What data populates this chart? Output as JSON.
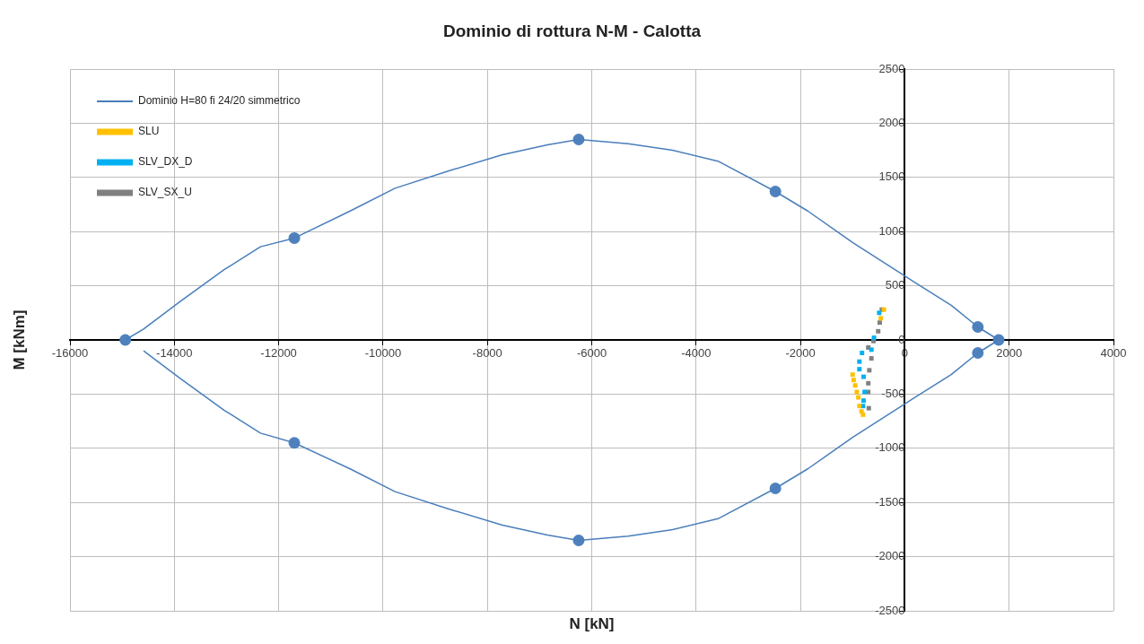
{
  "chart_data": {
    "type": "scatter",
    "title": "Dominio di rottura N-M - Calotta",
    "xlabel": "N [kN]",
    "ylabel": "M [kNm]",
    "xlim": [
      -16000,
      4000
    ],
    "xticks": [
      -16000,
      -14000,
      -12000,
      -10000,
      -8000,
      -6000,
      -4000,
      -2000,
      0,
      2000,
      4000
    ],
    "ylim": [
      -2500,
      2500
    ],
    "yticks": [
      -2500,
      -2000,
      -1500,
      -1000,
      -500,
      0,
      500,
      1000,
      1500,
      2000,
      2500
    ],
    "grid": true,
    "legend": "top left",
    "series": [
      {
        "name": "Dominio H=80 fi 24/20 simmetrico",
        "type": "line",
        "marker": "none",
        "color": "#4a7ebb",
        "x": [
          -14940,
          -14590,
          -13900,
          -13040,
          -12350,
          -11700,
          -10630,
          -9770,
          -8740,
          -7710,
          -6850,
          -6250,
          -5300,
          -4450,
          -3580,
          -2480,
          -1860,
          -1000,
          0,
          890,
          1400,
          1800,
          1400,
          890,
          0,
          -1000,
          -1860,
          -2480,
          -3580,
          -4450,
          -5300,
          -6250,
          -6850,
          -7710,
          -8740,
          -9770,
          -10630,
          -11700,
          -12350,
          -13040,
          -13900,
          -14590
        ],
        "values": [
          0,
          100,
          350,
          650,
          860,
          940,
          1190,
          1400,
          1560,
          1710,
          1800,
          1850,
          1810,
          1750,
          1650,
          1370,
          1190,
          900,
          590,
          320,
          120,
          0,
          -120,
          -320,
          -590,
          -900,
          -1190,
          -1370,
          -1650,
          -1750,
          -1810,
          -1850,
          -1800,
          -1710,
          -1560,
          -1400,
          -1190,
          -950,
          -860,
          -650,
          -350,
          -100
        ]
      },
      {
        "type": "scatter",
        "marker": "circle",
        "color": "#4f81bd",
        "x": [
          -14940,
          -11700,
          -6250,
          -2480,
          1400,
          1800,
          1400,
          -2480,
          -6250,
          -11700
        ],
        "values": [
          0,
          940,
          1850,
          1370,
          120,
          0,
          -120,
          -1370,
          -1850,
          -950
        ]
      },
      {
        "name": "SLU",
        "type": "scatter",
        "marker": "square",
        "color": "#ffc000",
        "x": [
          -400,
          -460,
          -1000,
          -980,
          -950,
          -920,
          -890,
          -870,
          -830,
          -800
        ],
        "values": [
          280,
          200,
          -320,
          -370,
          -420,
          -480,
          -530,
          -610,
          -660,
          -690
        ]
      },
      {
        "name": "SLV_DX_D",
        "type": "scatter",
        "marker": "square",
        "color": "#00b0f0",
        "x": [
          -490,
          -590,
          -640,
          -820,
          -870,
          -870,
          -790,
          -770,
          -790,
          -800
        ],
        "values": [
          250,
          20,
          -90,
          -120,
          -200,
          -270,
          -340,
          -480,
          -560,
          -610
        ]
      },
      {
        "name": "SLV_SX_U",
        "type": "scatter",
        "marker": "square",
        "color": "#808080",
        "x": [
          -440,
          -480,
          -510,
          -600,
          -700,
          -640,
          -680,
          -700,
          -700,
          -690
        ],
        "values": [
          280,
          160,
          80,
          -10,
          -70,
          -170,
          -280,
          -400,
          -480,
          -630
        ]
      }
    ]
  }
}
